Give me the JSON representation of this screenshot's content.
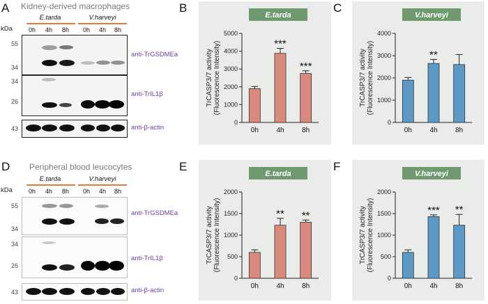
{
  "panel_labels": [
    "A",
    "B",
    "C",
    "D",
    "E",
    "F"
  ],
  "blot_top": {
    "title": "Kidney-derived macrophages",
    "kda": "kDa",
    "groups": [
      "E.tarda",
      "V.harveyi"
    ],
    "timepoints": [
      "0h",
      "4h",
      "8h",
      "0h",
      "4h",
      "8h"
    ],
    "markers_1": [
      "55",
      "34"
    ],
    "markers_2": [
      "34",
      "26"
    ],
    "markers_3": [
      "43"
    ],
    "antibodies": [
      "anti-TrGSDMEa",
      "anti-TrIL1β",
      "anti-β-actin"
    ]
  },
  "blot_bottom": {
    "title": "Peripheral blood leucocytes",
    "kda": "kDa",
    "groups": [
      "E.tarda",
      "V.harveyi"
    ],
    "timepoints": [
      "0h",
      "4h",
      "8h",
      "0h",
      "4h",
      "8h"
    ],
    "markers_1": [
      "55",
      "34"
    ],
    "markers_2": [
      "34",
      "26"
    ],
    "markers_3": [
      "43"
    ],
    "antibodies": [
      "anti-TrGSDMEa",
      "anti-TrIL1β",
      "anti-β-actin"
    ]
  },
  "colors": {
    "etarda": "#d98a7c",
    "vharveyi": "#5b9ac6",
    "label_bg": "#6f9a6f",
    "underline": "#e8792e",
    "antibody": "#6b3fa0"
  },
  "chart_data": [
    {
      "panel": "B",
      "type": "bar",
      "title": "E.tarda",
      "ylabel": "TrCASP3/7 activity\n(Fluorescence Intensity)",
      "categories": [
        "0h",
        "4h",
        "8h"
      ],
      "values": [
        1900,
        3880,
        2750
      ],
      "errors": [
        120,
        280,
        150
      ],
      "significance": [
        "",
        "***",
        "***"
      ],
      "ylim": [
        0,
        5000
      ],
      "yticks": [
        0,
        1000,
        2000,
        3000,
        4000,
        5000
      ],
      "color": "#d98a7c"
    },
    {
      "panel": "C",
      "type": "bar",
      "title": "V.harveyi",
      "ylabel": "TrCASP3/7 activity\n(Fluorescence Intensity)",
      "categories": [
        "0h",
        "4h",
        "8h"
      ],
      "values": [
        1900,
        2650,
        2600
      ],
      "errors": [
        120,
        180,
        450
      ],
      "significance": [
        "",
        "**",
        ""
      ],
      "ylim": [
        0,
        4000
      ],
      "yticks": [
        0,
        1000,
        2000,
        3000,
        4000
      ],
      "color": "#5b9ac6"
    },
    {
      "panel": "E",
      "type": "bar",
      "title": "E.tarda",
      "ylabel": "TrCASP3/7 activity\n(Fluorescence Intensity)",
      "categories": [
        "0h",
        "4h",
        "8h"
      ],
      "values": [
        600,
        1230,
        1300
      ],
      "errors": [
        60,
        160,
        50
      ],
      "significance": [
        "",
        "**",
        "**"
      ],
      "ylim": [
        0,
        2000
      ],
      "yticks": [
        0,
        500,
        1000,
        1500,
        2000
      ],
      "color": "#d98a7c"
    },
    {
      "panel": "F",
      "type": "bar",
      "title": "V.harveyi",
      "ylabel": "TrCASP3/7 activity\n(Fluorescence Intensity)",
      "categories": [
        "0h",
        "4h",
        "8h"
      ],
      "values": [
        600,
        1430,
        1230
      ],
      "errors": [
        60,
        40,
        250
      ],
      "significance": [
        "",
        "***",
        "**"
      ],
      "ylim": [
        0,
        2000
      ],
      "yticks": [
        0,
        500,
        1000,
        1500,
        2000
      ],
      "color": "#5b9ac6"
    }
  ]
}
